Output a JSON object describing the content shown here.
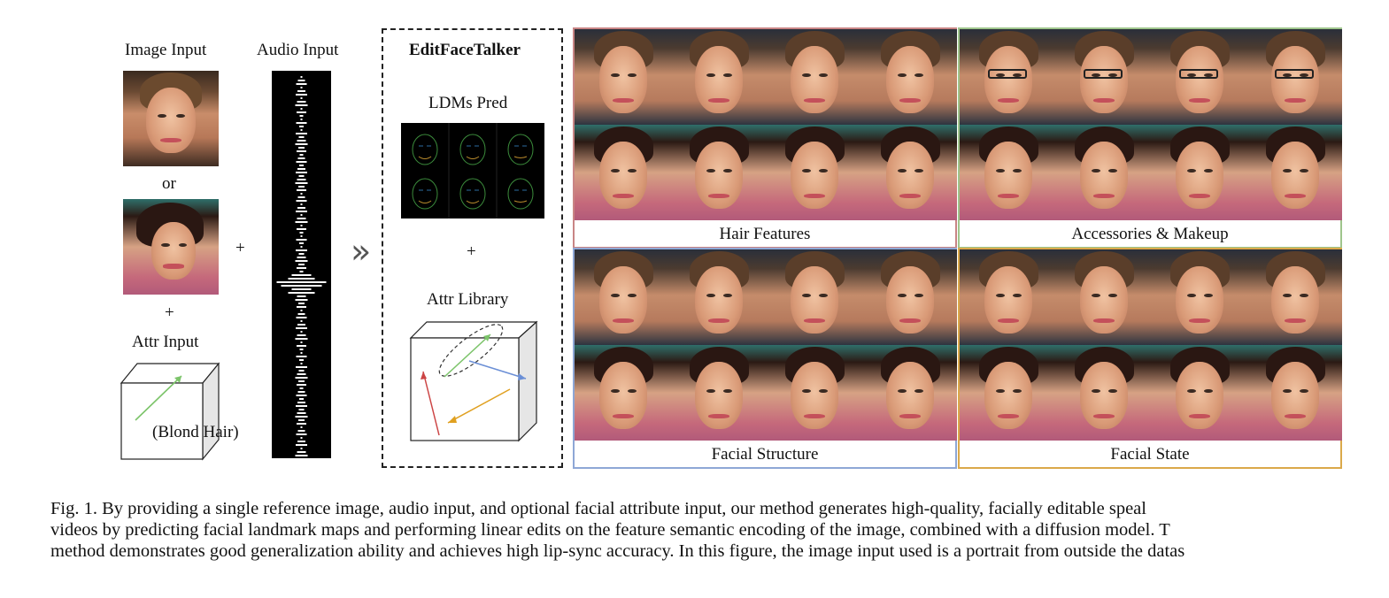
{
  "left": {
    "image_input_label": "Image Input",
    "audio_input_label": "Audio Input",
    "or_label": "or",
    "plus_label": "+",
    "attr_input_label": "Attr Input",
    "cube_text": "(Blond Hair)"
  },
  "editbox": {
    "title": "EditFaceTalker",
    "ldm_label": "LDMs Pred",
    "plus_label": "+",
    "library_label": "Attr Library",
    "arrow_symbol": "»"
  },
  "panels": [
    {
      "caption": "Hair Features",
      "border": "#c98585"
    },
    {
      "caption": "Accessories & Makeup",
      "border": "#9fc58c"
    },
    {
      "caption": "Facial Structure",
      "border": "#8ea7d6"
    },
    {
      "caption": "Facial State",
      "border": "#dba94a"
    }
  ],
  "caption": {
    "line1": "Fig. 1.  By providing a single reference image, audio input, and optional facial attribute input, our method generates high-quality, facially editable speal",
    "line2": "videos by predicting facial landmark maps and performing linear edits on the feature semantic encoding of the image, combined with a diffusion model. T",
    "line3": "method demonstrates good generalization ability and achieves high lip-sync accuracy. In this figure, the image input used is a portrait from outside the datas"
  }
}
